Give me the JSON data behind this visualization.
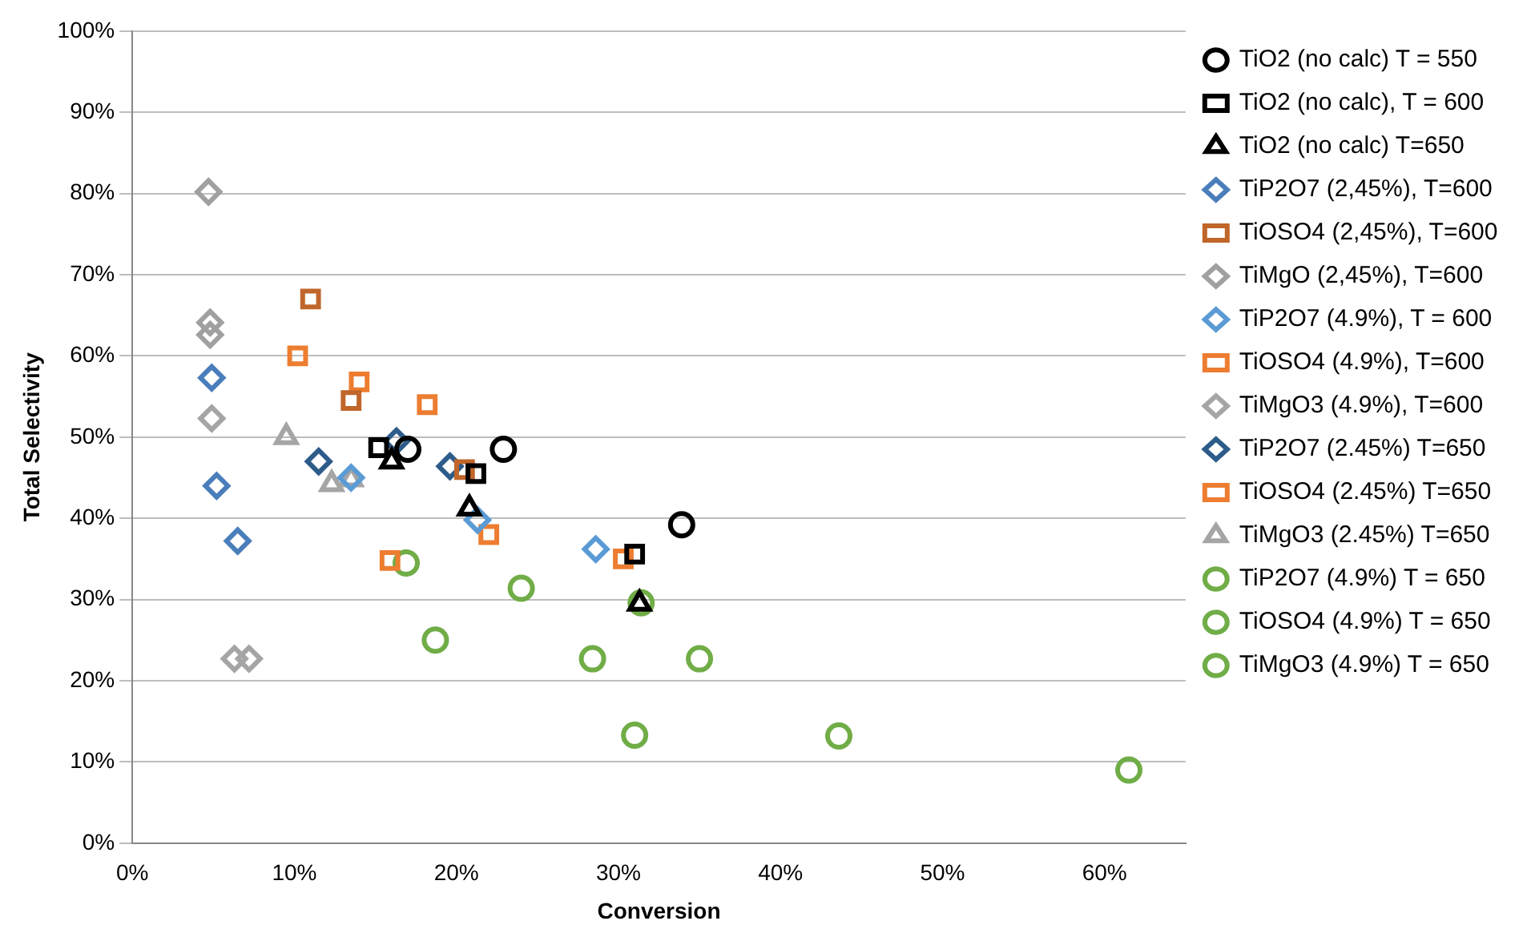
{
  "chart_data": {
    "type": "scatter",
    "xlabel": "Conversion",
    "ylabel": "Total Selectivity",
    "xlim": [
      0,
      65
    ],
    "ylim": [
      0,
      100
    ],
    "xticks": [
      {
        "value": 0,
        "label": "0%"
      },
      {
        "value": 10,
        "label": "10%"
      },
      {
        "value": 20,
        "label": "20%"
      },
      {
        "value": 30,
        "label": "30%"
      },
      {
        "value": 40,
        "label": "40%"
      },
      {
        "value": 50,
        "label": "50%"
      },
      {
        "value": 60,
        "label": "60%"
      }
    ],
    "yticks": [
      {
        "value": 0,
        "label": "0%"
      },
      {
        "value": 10,
        "label": "10%"
      },
      {
        "value": 20,
        "label": "20%"
      },
      {
        "value": 30,
        "label": "30%"
      },
      {
        "value": 40,
        "label": "40%"
      },
      {
        "value": 50,
        "label": "50%"
      },
      {
        "value": 60,
        "label": "60%"
      },
      {
        "value": 70,
        "label": "70%"
      },
      {
        "value": 80,
        "label": "80%"
      },
      {
        "value": 90,
        "label": "90%"
      },
      {
        "value": 100,
        "label": "100%"
      }
    ],
    "grid": "y",
    "legend": "right",
    "series": [
      {
        "name": "TiO2 (no calc) T = 550",
        "color": "#000000",
        "marker": "circle",
        "x": [
          17,
          22.9,
          33.9
        ],
        "values": [
          48.5,
          48.5,
          39.2
        ]
      },
      {
        "name": "TiO2 (no calc), T = 600",
        "color": "#000000",
        "marker": "square",
        "x": [
          15.2,
          21.2,
          31
        ],
        "values": [
          48.7,
          45.5,
          35.6
        ]
      },
      {
        "name": "TiO2 (no calc) T=650",
        "color": "#000000",
        "marker": "triangle",
        "x": [
          16,
          20.8,
          31.3
        ],
        "values": [
          47,
          41.2,
          29.5
        ]
      },
      {
        "name": "TiP2O7 (2,45%), T=600",
        "color": "#4a7ebb",
        "marker": "diamond",
        "x": [
          4.9,
          5.2,
          6.5
        ],
        "values": [
          57.3,
          44,
          37.2
        ]
      },
      {
        "name": "TiOSO4 (2,45%), T=600",
        "color": "#c0662a",
        "marker": "square",
        "x": [
          11,
          13.5,
          20.5
        ],
        "values": [
          67,
          54.5,
          46
        ]
      },
      {
        "name": "TiMgO (2,45%), T=600",
        "color": "#a0a0a0",
        "marker": "diamond",
        "x": [
          4.7,
          4.8,
          4.8
        ],
        "values": [
          80.2,
          64.1,
          62.6
        ]
      },
      {
        "name": "TiP2O7 (4.9%), T = 600",
        "color": "#5b9bd5",
        "marker": "diamond",
        "x": [
          13.5,
          21.3,
          28.6
        ],
        "values": [
          45,
          39.8,
          36.2
        ]
      },
      {
        "name": "TiOSO4 (4.9%), T=600",
        "color": "#ed7d31",
        "marker": "square",
        "x": [
          10.2,
          14,
          18.2
        ],
        "values": [
          60,
          56.8,
          54
        ]
      },
      {
        "name": "TiMgO3 (4.9%), T=600",
        "color": "#a5a5a5",
        "marker": "diamond",
        "x": [
          4.9,
          6.3,
          7.2
        ],
        "values": [
          52.3,
          22.7,
          22.7
        ]
      },
      {
        "name": "TiP2O7 (2.45%) T=650",
        "color": "#2e5c8a",
        "marker": "diamond",
        "x": [
          11.5,
          16.3,
          19.6
        ],
        "values": [
          47,
          49.5,
          46.4
        ]
      },
      {
        "name": "TiOSO4 (2.45%) T=650",
        "color": "#ed7d31",
        "marker": "square",
        "x": [
          15.9,
          22,
          30.3
        ],
        "values": [
          34.8,
          38,
          35
        ]
      },
      {
        "name": "TiMgO3 (2.45%) T=650",
        "color": "#a5a5a5",
        "marker": "triangle",
        "x": [
          9.5,
          12.3,
          13.5
        ],
        "values": [
          50,
          44.2,
          44.8
        ]
      },
      {
        "name": "TiP2O7 (4.9%) T = 650",
        "color": "#70ad47",
        "marker": "circle",
        "x": [
          31,
          43.6,
          61.5
        ],
        "values": [
          13.3,
          13.2,
          9
        ]
      },
      {
        "name": "TiOSO4 (4.9%) T = 650",
        "color": "#70ad47",
        "marker": "circle",
        "x": [
          16.9,
          24,
          31.4
        ],
        "values": [
          34.5,
          31.4,
          29.6
        ]
      },
      {
        "name": "TiMgO3 (4.9%) T = 650",
        "color": "#70ad47",
        "marker": "circle",
        "x": [
          18.7,
          28.4,
          35
        ],
        "values": [
          25,
          22.7,
          22.7
        ]
      }
    ]
  }
}
